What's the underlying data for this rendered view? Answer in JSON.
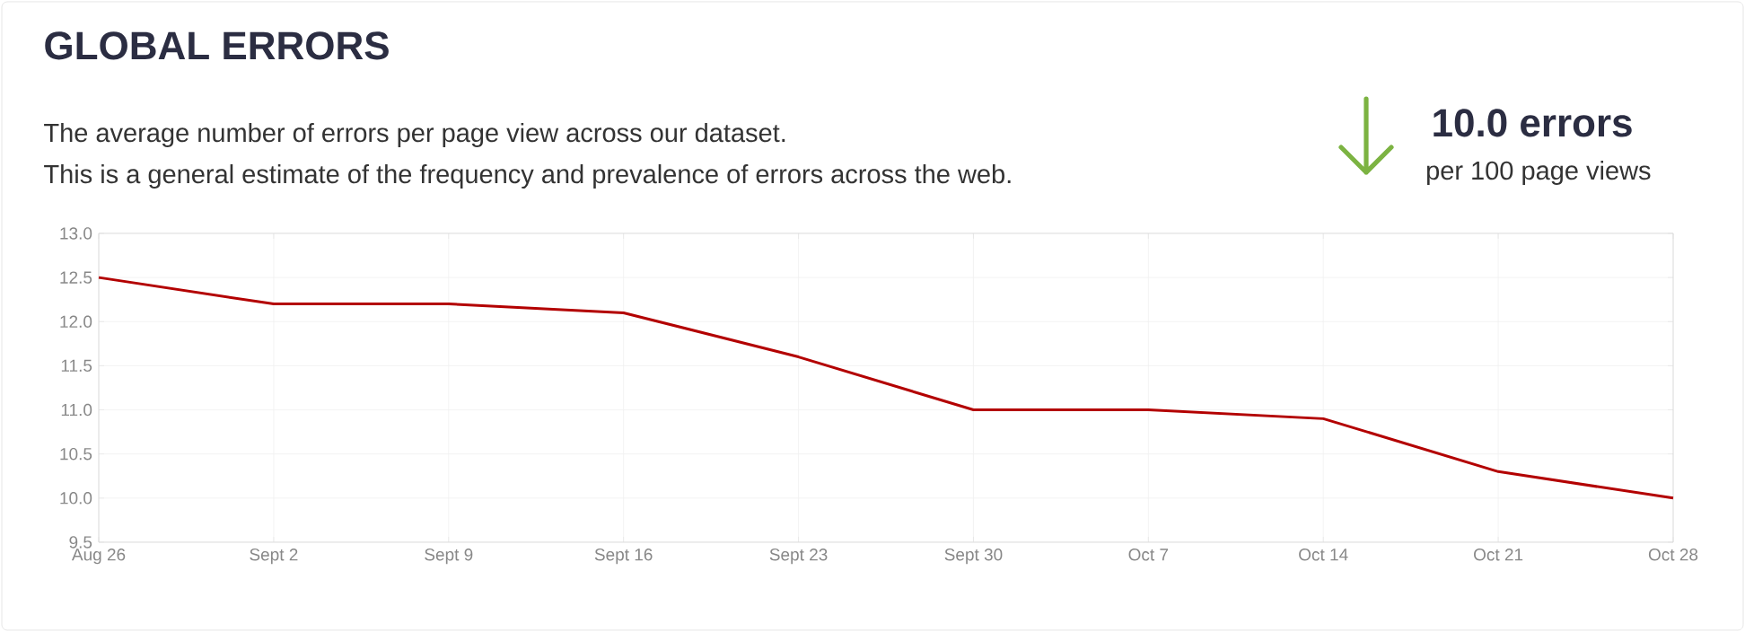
{
  "chart_data": {
    "type": "line",
    "title": "GLOBAL ERRORS",
    "subtitle": "The average number of errors per page view across our dataset.",
    "annotations": [
      "This is a general estimate of the frequency and prevalence of errors across the web.",
      "10.0 errors",
      "per 100 page views"
    ],
    "categories": [
      "Aug 26",
      "Sept 2",
      "Sept 9",
      "Sept 16",
      "Sept 23",
      "Sept 30",
      "Oct 7",
      "Oct 14",
      "Oct 21",
      "Oct 28"
    ],
    "values": [
      12.5,
      12.2,
      12.2,
      12.1,
      11.6,
      11.0,
      11.0,
      10.9,
      10.3,
      10.0
    ],
    "color": "#b30000",
    "ylim": [
      9.5,
      13.0
    ],
    "yticks": [
      {
        "value": 9.5,
        "label": "9.5"
      },
      {
        "value": 10.0,
        "label": "10.0"
      },
      {
        "value": 10.5,
        "label": "10.5"
      },
      {
        "value": 11.0,
        "label": "11.0"
      },
      {
        "value": 11.5,
        "label": "11.5"
      },
      {
        "value": 12.0,
        "label": "12.0"
      },
      {
        "value": 12.5,
        "label": "12.5"
      },
      {
        "value": 13.0,
        "label": "13.0"
      }
    ],
    "grid": true
  }
}
